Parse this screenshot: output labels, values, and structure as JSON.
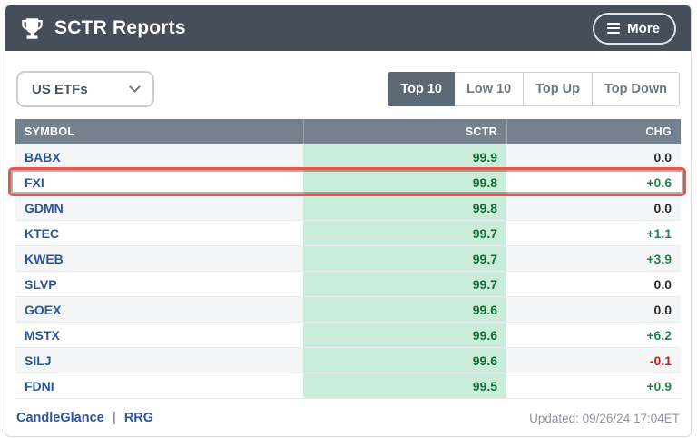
{
  "header": {
    "title": "SCTR Reports",
    "more_label": "More"
  },
  "toolbar": {
    "dropdown_value": "US ETFs",
    "tabs": [
      {
        "label": "Top 10",
        "active": true
      },
      {
        "label": "Low 10",
        "active": false
      },
      {
        "label": "Top Up",
        "active": false
      },
      {
        "label": "Top Down",
        "active": false
      }
    ]
  },
  "table": {
    "columns": [
      "SYMBOL",
      "SCTR",
      "CHG"
    ],
    "rows": [
      {
        "symbol": "BABX",
        "sctr": "99.9",
        "chg": "0.0",
        "chg_type": "neutral",
        "highlighted": false
      },
      {
        "symbol": "FXI",
        "sctr": "99.8",
        "chg": "+0.6",
        "chg_type": "positive",
        "highlighted": true
      },
      {
        "symbol": "GDMN",
        "sctr": "99.8",
        "chg": "0.0",
        "chg_type": "neutral",
        "highlighted": false
      },
      {
        "symbol": "KTEC",
        "sctr": "99.7",
        "chg": "+1.1",
        "chg_type": "positive",
        "highlighted": false
      },
      {
        "symbol": "KWEB",
        "sctr": "99.7",
        "chg": "+3.9",
        "chg_type": "positive",
        "highlighted": false
      },
      {
        "symbol": "SLVP",
        "sctr": "99.7",
        "chg": "0.0",
        "chg_type": "neutral",
        "highlighted": false
      },
      {
        "symbol": "GOEX",
        "sctr": "99.6",
        "chg": "0.0",
        "chg_type": "neutral",
        "highlighted": false
      },
      {
        "symbol": "MSTX",
        "sctr": "99.6",
        "chg": "+6.2",
        "chg_type": "positive",
        "highlighted": false
      },
      {
        "symbol": "SILJ",
        "sctr": "99.6",
        "chg": "-0.1",
        "chg_type": "negative",
        "highlighted": false
      },
      {
        "symbol": "FDNI",
        "sctr": "99.5",
        "chg": "+0.9",
        "chg_type": "positive",
        "highlighted": false
      }
    ]
  },
  "footer": {
    "link1": "CandleGlance",
    "separator": "|",
    "link2": "RRG",
    "updated": "Updated: 09/26/24 17:04ET"
  },
  "icons": {
    "trophy": "trophy-icon",
    "menu": "hamburger-icon",
    "dropdown_chevron": "chevron-down-icon"
  },
  "colors": {
    "app_header_bg": "#454E59",
    "table_header_bg": "#75818E",
    "sctr_cell_bg": "#C9EDD8",
    "sctr_text": "#156D38",
    "chg_positive": "#1E8748",
    "chg_negative": "#C5211E",
    "chg_neutral": "#2B2B2B",
    "symbol_link": "#2A579B",
    "active_tab_bg": "#5C6873",
    "highlight_border": "#E4574E"
  }
}
